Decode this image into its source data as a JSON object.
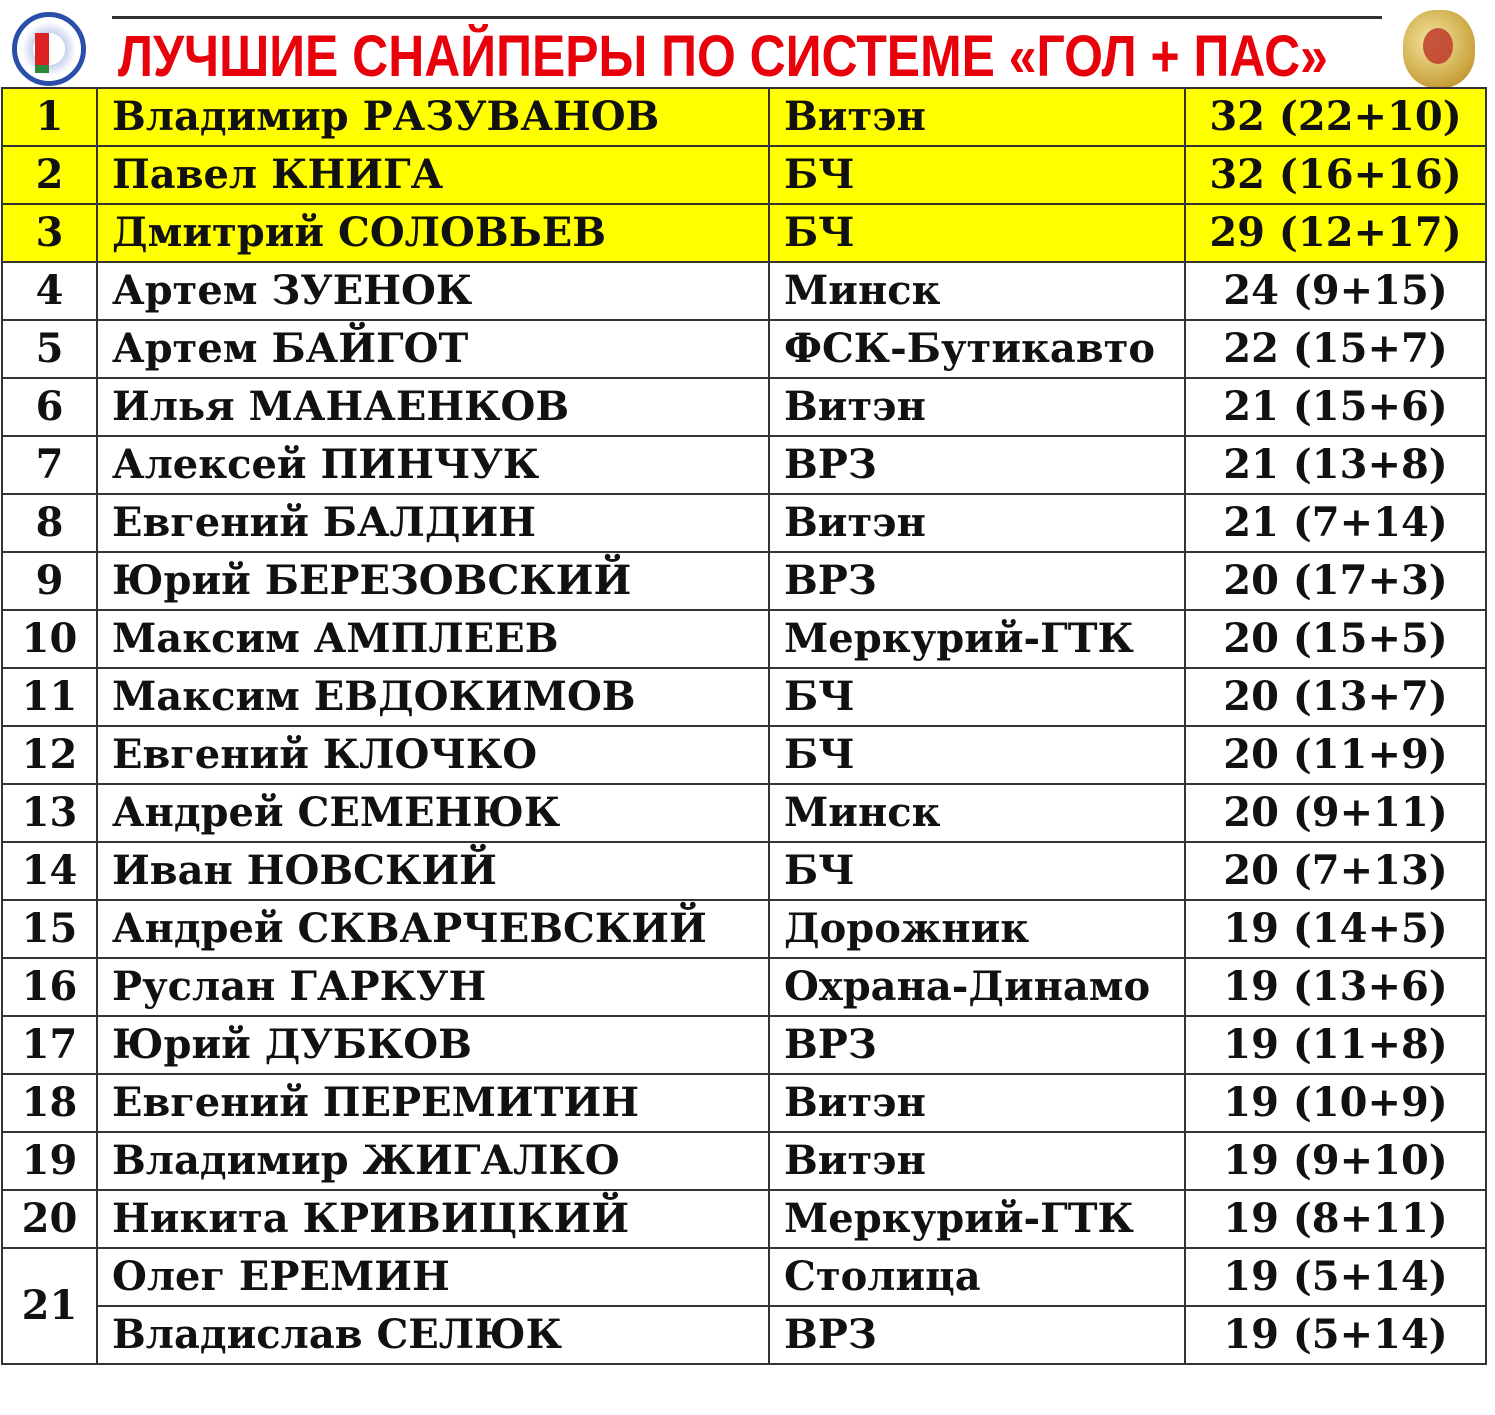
{
  "header": {
    "title": "ЛУЧШИЕ СНАЙПЕРЫ ПО СИСТЕМЕ «ГОЛ + ПАС»",
    "left_logo": "federation-emblem-icon",
    "right_logo": "gold-medal-emblem-icon"
  },
  "colors": {
    "title": "#e8000b",
    "highlight": "#ffff00"
  },
  "rows": [
    {
      "rank": "1",
      "name": "Владимир РАЗУВАНОВ",
      "team": "Витэн",
      "points": "32 (22+10)",
      "highlight": true
    },
    {
      "rank": "2",
      "name": "Павел КНИГА",
      "team": "БЧ",
      "points": "32 (16+16)",
      "highlight": true
    },
    {
      "rank": "3",
      "name": "Дмитрий СОЛОВЬЕВ",
      "team": "БЧ",
      "points": "29 (12+17)",
      "highlight": true
    },
    {
      "rank": "4",
      "name": "Артем ЗУЕНОК",
      "team": "Минск",
      "points": "24 (9+15)"
    },
    {
      "rank": "5",
      "name": "Артем БАЙГОТ",
      "team": "ФСК-Бутикавто",
      "points": "22 (15+7)"
    },
    {
      "rank": "6",
      "name": "Илья МАНАЕНКОВ",
      "team": "Витэн",
      "points": "21 (15+6)"
    },
    {
      "rank": "7",
      "name": "Алексей ПИНЧУК",
      "team": "ВРЗ",
      "points": "21 (13+8)"
    },
    {
      "rank": "8",
      "name": "Евгений БАЛДИН",
      "team": "Витэн",
      "points": "21 (7+14)"
    },
    {
      "rank": "9",
      "name": "Юрий БЕРЕЗОВСКИЙ",
      "team": "ВРЗ",
      "points": "20 (17+3)"
    },
    {
      "rank": "10",
      "name": "Максим АМПЛЕЕВ",
      "team": "Меркурий-ГТК",
      "points": "20 (15+5)"
    },
    {
      "rank": "11",
      "name": "Максим ЕВДОКИМОВ",
      "team": "БЧ",
      "points": "20 (13+7)"
    },
    {
      "rank": "12",
      "name": "Евгений КЛОЧКО",
      "team": "БЧ",
      "points": "20 (11+9)"
    },
    {
      "rank": "13",
      "name": "Андрей СЕМЕНЮК",
      "team": "Минск",
      "points": "20 (9+11)"
    },
    {
      "rank": "14",
      "name": "Иван НОВСКИЙ",
      "team": "БЧ",
      "points": "20 (7+13)"
    },
    {
      "rank": "15",
      "name": "Андрей СКВАРЧЕВСКИЙ",
      "team": "Дорожник",
      "points": "19 (14+5)"
    },
    {
      "rank": "16",
      "name": "Руслан ГАРКУН",
      "team": "Охрана-Динамо",
      "points": "19 (13+6)"
    },
    {
      "rank": "17",
      "name": "Юрий ДУБКОВ",
      "team": "ВРЗ",
      "points": "19 (11+8)"
    },
    {
      "rank": "18",
      "name": "Евгений ПЕРЕМИТИН",
      "team": "Витэн",
      "points": "19 (10+9)"
    },
    {
      "rank": "19",
      "name": "Владимир ЖИГАЛКО",
      "team": "Витэн",
      "points": "19 (9+10)"
    },
    {
      "rank": "20",
      "name": "Никита КРИВИЦКИЙ",
      "team": "Меркурий-ГТК",
      "points": "19 (8+11)"
    },
    {
      "rank": "21",
      "name": "Олег ЕРЕМИН",
      "team": "Столица",
      "points": "19 (5+14)",
      "rowspan": 2
    },
    {
      "rank": "",
      "name": "Владислав СЕЛЮК",
      "team": "ВРЗ",
      "points": "19 (5+14)",
      "merged": true
    }
  ]
}
